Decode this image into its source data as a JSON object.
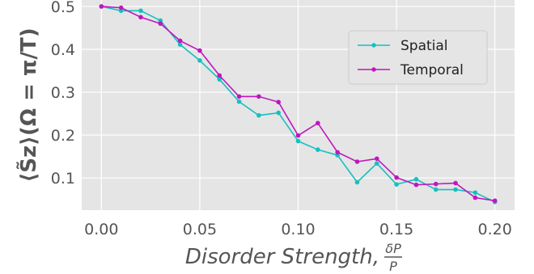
{
  "chart_data": {
    "type": "line",
    "xlabel": "Disorder Strength,",
    "xlabel_fraction": {
      "numerator": "δP",
      "denominator": "P"
    },
    "ylabel": "⟨S̃z⟩(Ω = π/T)",
    "xlim": [
      -0.01,
      0.21
    ],
    "ylim": [
      0.025,
      0.515
    ],
    "x_ticks": [
      0.0,
      0.05,
      0.1,
      0.15,
      0.2
    ],
    "x_tick_labels": [
      "0.00",
      "0.05",
      "0.10",
      "0.15",
      "0.20"
    ],
    "y_ticks": [
      0.1,
      0.2,
      0.3,
      0.4,
      0.5
    ],
    "y_tick_labels": [
      "0.1",
      "0.2",
      "0.3",
      "0.4",
      "0.5"
    ],
    "grid": true,
    "legend_position": "top-right",
    "x": [
      0.0,
      0.01,
      0.02,
      0.03,
      0.04,
      0.05,
      0.06,
      0.07,
      0.08,
      0.09,
      0.1,
      0.11,
      0.12,
      0.13,
      0.14,
      0.15,
      0.16,
      0.17,
      0.18,
      0.19,
      0.2
    ],
    "series": [
      {
        "name": "Spatial",
        "color": "#17bfc0",
        "values": [
          0.5,
          0.49,
          0.49,
          0.467,
          0.411,
          0.374,
          0.33,
          0.278,
          0.246,
          0.252,
          0.186,
          0.166,
          0.153,
          0.09,
          0.134,
          0.085,
          0.097,
          0.073,
          0.073,
          0.066,
          0.044
        ]
      },
      {
        "name": "Temporal",
        "color": "#bf17bf",
        "values": [
          0.5,
          0.497,
          0.475,
          0.46,
          0.42,
          0.397,
          0.339,
          0.29,
          0.29,
          0.277,
          0.199,
          0.228,
          0.16,
          0.138,
          0.145,
          0.101,
          0.084,
          0.086,
          0.088,
          0.054,
          0.047
        ]
      }
    ]
  }
}
